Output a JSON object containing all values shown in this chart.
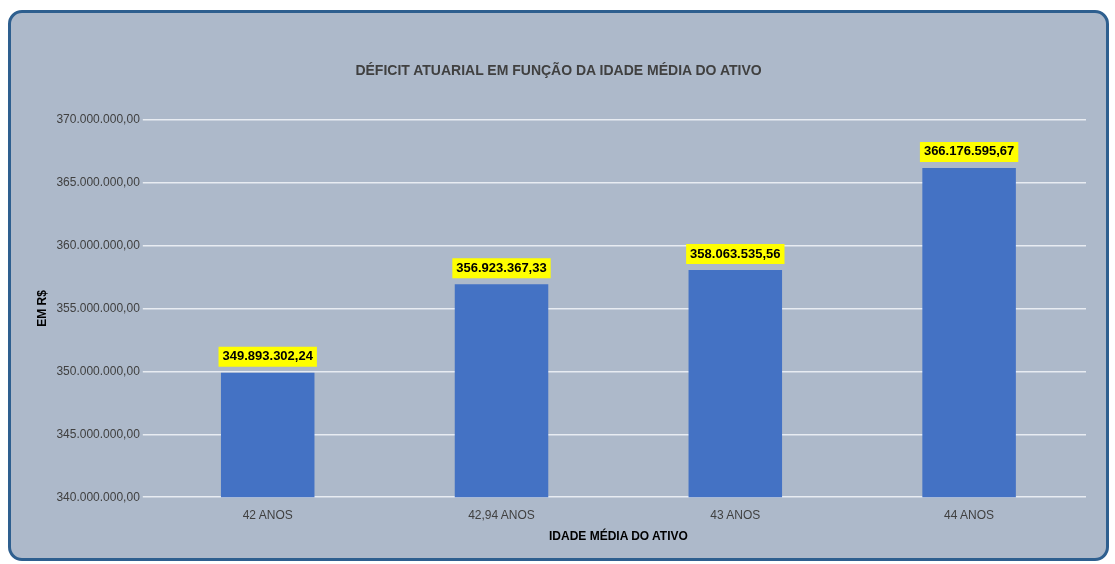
{
  "chart_data": {
    "type": "bar",
    "title": "DÉFICIT ATUARIAL EM FUNÇÃO DA IDADE MÉDIA DO ATIVO",
    "xlabel": "IDADE MÉDIA DO ATIVO",
    "ylabel": "EM R$",
    "categories": [
      "42 ANOS",
      "42,94 ANOS",
      "43 ANOS",
      "44 ANOS"
    ],
    "values": [
      349893302.24,
      356923367.33,
      358063535.56,
      366176595.67
    ],
    "value_labels": [
      "349.893.302,24",
      "356.923.367,33",
      "358.063.535,56",
      "366.176.595,67"
    ],
    "color": "#4472c4",
    "ylim": [
      340000000,
      370000000
    ],
    "yticks": [
      {
        "value": 340000000,
        "label": "340.000.000,00"
      },
      {
        "value": 345000000,
        "label": "345.000.000,00"
      },
      {
        "value": 350000000,
        "label": "350.000.000,00"
      },
      {
        "value": 355000000,
        "label": "355.000.000,00"
      },
      {
        "value": 360000000,
        "label": "360.000.000,00"
      },
      {
        "value": 365000000,
        "label": "365.000.000,00"
      },
      {
        "value": 370000000,
        "label": "370.000.000,00"
      }
    ],
    "grid": "y",
    "legend": false
  }
}
